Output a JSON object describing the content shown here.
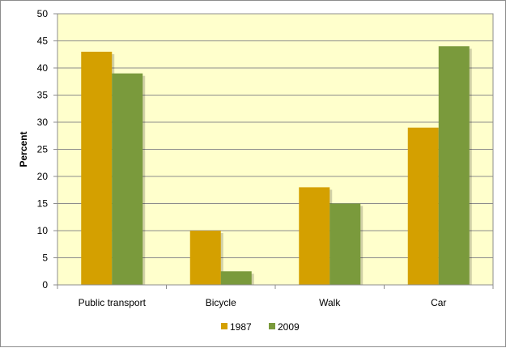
{
  "chart_data": {
    "type": "bar",
    "title": "",
    "xlabel": "",
    "ylabel": "Percent",
    "ylim": [
      0,
      50
    ],
    "ytick_step": 5,
    "grid": true,
    "legend_position": "bottom",
    "categories": [
      "Public transport",
      "Bicycle",
      "Walk",
      "Car"
    ],
    "series": [
      {
        "name": "1987",
        "color": "#d4a000",
        "values": [
          43,
          10,
          18,
          29
        ]
      },
      {
        "name": "2009",
        "color": "#7a9a3c",
        "values": [
          39,
          2.5,
          15,
          44
        ]
      }
    ],
    "plot_background": "#ffffcc"
  }
}
